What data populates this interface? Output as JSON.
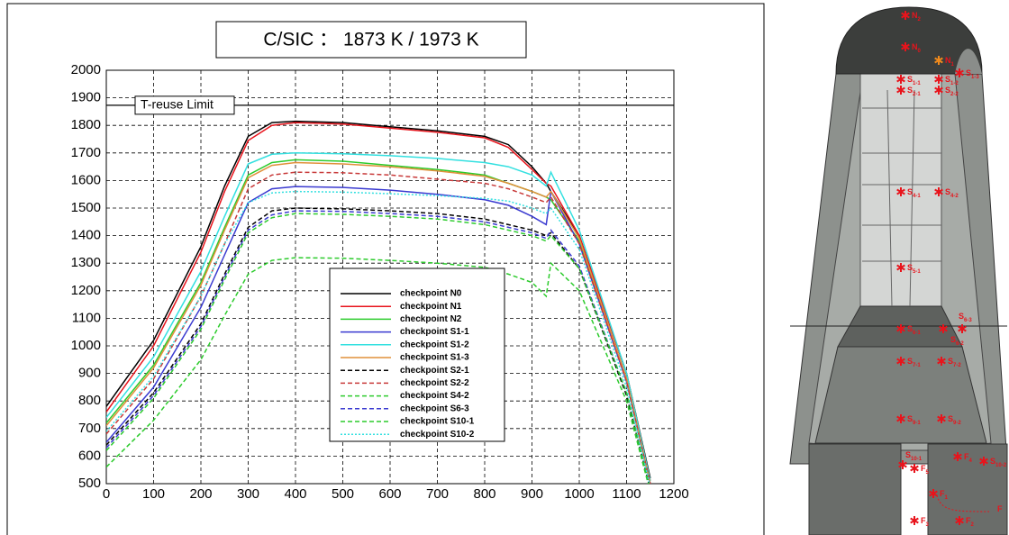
{
  "chart_data": {
    "type": "line",
    "title": "C/SIC ： 1873 K  / 1973 K",
    "x": [
      0,
      100,
      200,
      250,
      300,
      350,
      400,
      500,
      600,
      700,
      800,
      850,
      900,
      930,
      940,
      1000,
      1100,
      1150
    ],
    "xlim": [
      0,
      1200
    ],
    "xticks": [
      0,
      100,
      200,
      300,
      400,
      500,
      600,
      700,
      800,
      900,
      1000,
      1100,
      1200
    ],
    "ylim": [
      500,
      2000
    ],
    "yticks": [
      500,
      600,
      700,
      800,
      900,
      1000,
      1100,
      1200,
      1300,
      1400,
      1500,
      1600,
      1700,
      1800,
      1900,
      2000
    ],
    "grid": true,
    "legend": "center",
    "reference_line": {
      "value": 1873,
      "label": "T-reuse Limit"
    },
    "series": [
      {
        "name": "checkpoint N0",
        "color": "#000000",
        "dash": "solid",
        "values": [
          780,
          1020,
          1360,
          1580,
          1760,
          1810,
          1815,
          1810,
          1795,
          1780,
          1760,
          1730,
          1650,
          1590,
          1560,
          1400,
          900,
          520
        ]
      },
      {
        "name": "checkpoint N1",
        "color": "#e8141c",
        "dash": "solid",
        "values": [
          760,
          1000,
          1340,
          1560,
          1745,
          1800,
          1810,
          1805,
          1790,
          1775,
          1755,
          1720,
          1640,
          1590,
          1580,
          1400,
          900,
          510
        ]
      },
      {
        "name": "checkpoint N2",
        "color": "#2ccb2c",
        "dash": "solid",
        "values": [
          720,
          930,
          1230,
          1430,
          1620,
          1665,
          1675,
          1670,
          1655,
          1640,
          1620,
          1590,
          1560,
          1540,
          1530,
          1380,
          880,
          500
        ]
      },
      {
        "name": "checkpoint S1-1",
        "color": "#3a3ad0",
        "dash": "solid",
        "values": [
          650,
          850,
          1140,
          1330,
          1520,
          1570,
          1578,
          1575,
          1565,
          1550,
          1530,
          1510,
          1470,
          1440,
          1560,
          1370,
          870,
          500
        ]
      },
      {
        "name": "checkpoint S1-2",
        "color": "#33e0e0",
        "dash": "solid",
        "values": [
          740,
          960,
          1270,
          1470,
          1660,
          1695,
          1700,
          1697,
          1690,
          1680,
          1665,
          1650,
          1620,
          1580,
          1630,
          1420,
          900,
          510
        ]
      },
      {
        "name": "checkpoint S1-3",
        "color": "#e0903a",
        "dash": "solid",
        "values": [
          710,
          920,
          1220,
          1420,
          1610,
          1655,
          1665,
          1660,
          1650,
          1635,
          1615,
          1590,
          1560,
          1540,
          1560,
          1390,
          880,
          500
        ]
      },
      {
        "name": "checkpoint S2-1",
        "color": "#000000",
        "dash": "dashed",
        "values": [
          640,
          830,
          1080,
          1260,
          1430,
          1490,
          1500,
          1497,
          1490,
          1480,
          1460,
          1440,
          1420,
          1400,
          1410,
          1280,
          820,
          480
        ]
      },
      {
        "name": "checkpoint S2-2",
        "color": "#c83a3a",
        "dash": "dashed",
        "values": [
          680,
          880,
          1180,
          1370,
          1570,
          1620,
          1630,
          1628,
          1620,
          1605,
          1590,
          1570,
          1540,
          1520,
          1540,
          1370,
          870,
          500
        ]
      },
      {
        "name": "checkpoint S4-2",
        "color": "#2ccb2c",
        "dash": "dashed",
        "values": [
          560,
          730,
          950,
          1110,
          1260,
          1310,
          1320,
          1318,
          1310,
          1300,
          1285,
          1260,
          1230,
          1180,
          1300,
          1200,
          800,
          470
        ]
      },
      {
        "name": "checkpoint S6-3",
        "color": "#3a3ad0",
        "dash": "dashed",
        "values": [
          630,
          820,
          1070,
          1250,
          1420,
          1475,
          1490,
          1488,
          1480,
          1470,
          1450,
          1430,
          1410,
          1390,
          1420,
          1290,
          830,
          480
        ]
      },
      {
        "name": "checkpoint S10-1",
        "color": "#2ccb2c",
        "dash": "dashed",
        "values": [
          620,
          810,
          1060,
          1240,
          1410,
          1465,
          1480,
          1477,
          1470,
          1460,
          1440,
          1420,
          1400,
          1380,
          1400,
          1280,
          830,
          480
        ]
      },
      {
        "name": "checkpoint S10-2",
        "color": "#33e0e0",
        "dash": "dotted",
        "values": [
          690,
          890,
          1180,
          1370,
          1520,
          1555,
          1560,
          1558,
          1552,
          1545,
          1535,
          1525,
          1500,
          1480,
          1500,
          1350,
          850,
          490
        ]
      }
    ]
  },
  "diagram": {
    "markers": [
      {
        "main": "N",
        "sub": "2"
      },
      {
        "main": "N",
        "sub": "0"
      },
      {
        "main": "N",
        "sub": "1"
      },
      {
        "main": "S",
        "sub": "1-1"
      },
      {
        "main": "S",
        "sub": "1-2"
      },
      {
        "main": "S",
        "sub": "1-3"
      },
      {
        "main": "S",
        "sub": "2-1"
      },
      {
        "main": "S",
        "sub": "2-2"
      },
      {
        "main": "S",
        "sub": "4-1"
      },
      {
        "main": "S",
        "sub": "4-2"
      },
      {
        "main": "S",
        "sub": "5-1"
      },
      {
        "main": "S",
        "sub": "6-1"
      },
      {
        "main": "S",
        "sub": "6-2"
      },
      {
        "main": "S",
        "sub": "6-3"
      },
      {
        "main": "S",
        "sub": "7-1"
      },
      {
        "main": "S",
        "sub": "7-2"
      },
      {
        "main": "S",
        "sub": "9-1"
      },
      {
        "main": "S",
        "sub": "9-2"
      },
      {
        "main": "S",
        "sub": "10-1"
      },
      {
        "main": "F",
        "sub": "5"
      },
      {
        "main": "F",
        "sub": "4"
      },
      {
        "main": "S",
        "sub": "10-2"
      },
      {
        "main": "F",
        "sub": "1"
      },
      {
        "main": "F",
        "sub": ""
      },
      {
        "main": "F",
        "sub": "3"
      },
      {
        "main": "F",
        "sub": "2"
      }
    ]
  }
}
